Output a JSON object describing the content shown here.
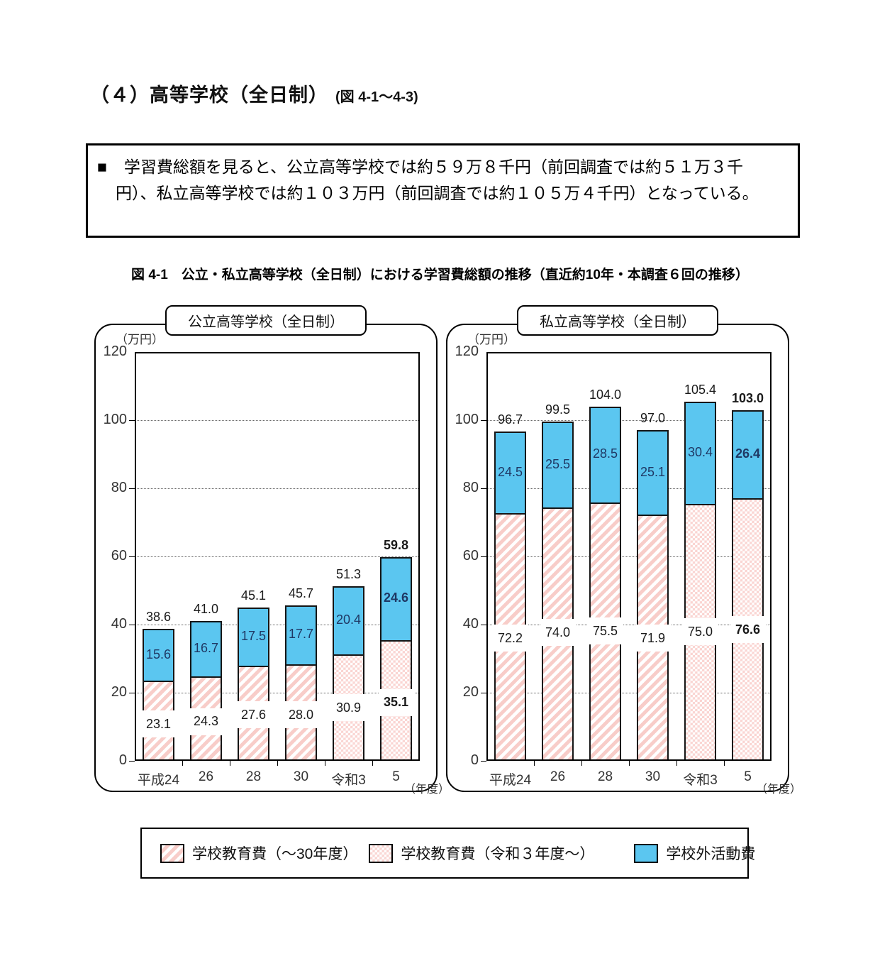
{
  "page": {
    "title": "（４）高等学校（全日制）",
    "title_ref": "(図 4-1～4-3)",
    "summary_bullet": "■",
    "summary_text": "学習費総額を見ると、公立高等学校では約５９万８千円（前回調査では約５１万３千円）、私立高等学校では約１０３万円（前回調査では約１０５万４千円）となっている。",
    "caption": "図 4-1　公立・私立高等学校（全日制）における学習費総額の推移（直近約10年・本調査６回の推移）"
  },
  "chart_data": [
    {
      "type": "bar",
      "stacked": true,
      "title": "公立高等学校（全日制）",
      "unit_label": "（万円）",
      "year_label": "（年度）",
      "categories": [
        "平成24",
        "26",
        "28",
        "30",
        "令和3",
        "5"
      ],
      "ylim": [
        0,
        120
      ],
      "yticks": [
        0,
        20,
        40,
        60,
        80,
        100,
        120
      ],
      "grid": "dotted-horizontal",
      "series": [
        {
          "name": "学校教育費",
          "values": [
            23.1,
            24.3,
            27.6,
            28.0,
            30.9,
            35.1
          ],
          "pattern_by_bar": [
            "stripe",
            "stripe",
            "stripe",
            "stripe",
            "checker",
            "checker"
          ]
        },
        {
          "name": "学校外活動費",
          "values": [
            15.6,
            16.7,
            17.5,
            17.7,
            20.4,
            24.6
          ],
          "color": "#5bc6f0"
        }
      ],
      "totals": [
        38.6,
        41.0,
        45.1,
        45.7,
        51.3,
        59.8
      ],
      "last_bar_bold": true,
      "edu_label_y": [
        10.8,
        11.5,
        13.5,
        13.5,
        15.6,
        17.1
      ]
    },
    {
      "type": "bar",
      "stacked": true,
      "title": "私立高等学校（全日制）",
      "unit_label": "（万円）",
      "year_label": "（年度）",
      "categories": [
        "平成24",
        "26",
        "28",
        "30",
        "令和3",
        "5"
      ],
      "ylim": [
        0,
        120
      ],
      "yticks": [
        0,
        20,
        40,
        60,
        80,
        100,
        120
      ],
      "grid": "dotted-horizontal",
      "series": [
        {
          "name": "学校教育費",
          "values": [
            72.2,
            74.0,
            75.5,
            71.9,
            75.0,
            76.6
          ],
          "pattern_by_bar": [
            "stripe",
            "stripe",
            "stripe",
            "stripe",
            "checker",
            "checker"
          ]
        },
        {
          "name": "学校外活動費",
          "values": [
            24.5,
            25.5,
            28.5,
            25.1,
            30.4,
            26.4
          ],
          "color": "#5bc6f0"
        }
      ],
      "totals": [
        96.7,
        99.5,
        104.0,
        97.0,
        105.4,
        103.0
      ],
      "last_bar_bold": true,
      "edu_label_y": [
        36.0,
        37.7,
        38.1,
        36.0,
        37.9,
        38.5
      ]
    }
  ],
  "legend": {
    "items": [
      {
        "label": "学校教育費（～30年度）",
        "swatch": "stripe"
      },
      {
        "label": "学校教育費（令和３年度～）",
        "swatch": "checker"
      },
      {
        "label": "学校外活動費",
        "swatch": "blue"
      }
    ]
  },
  "colors": {
    "bar_blue": "#5bc6f0",
    "stripe_pink": "#f8cdc9",
    "checker_pink": "#fad3d0",
    "value_label_navy": "#1f3864",
    "border_black": "#111111"
  }
}
